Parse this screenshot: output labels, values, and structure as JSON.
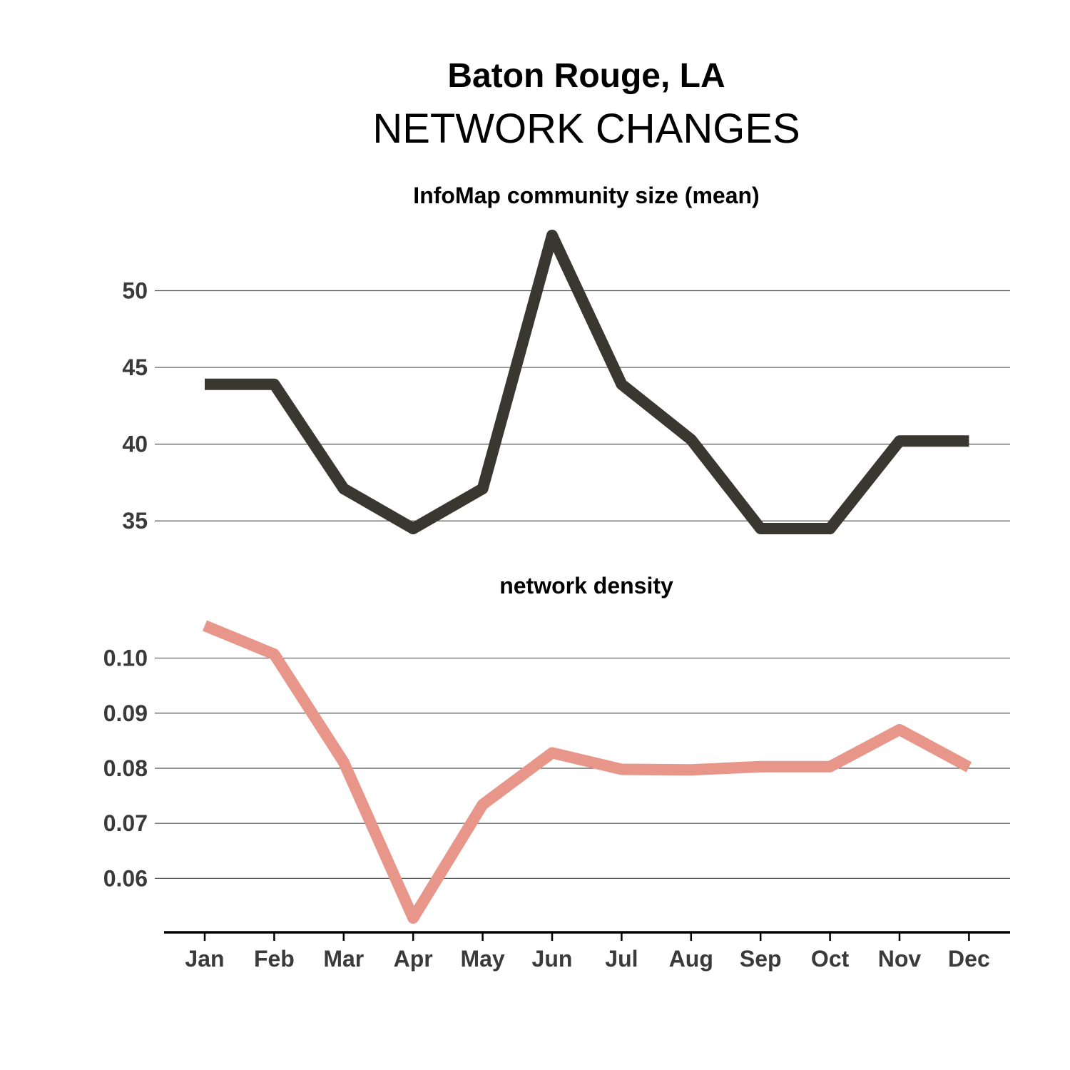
{
  "header": {
    "title": "Baton Rouge, LA",
    "subtitle": "NETWORK CHANGES"
  },
  "colors": {
    "community": "#3a3730",
    "density": "#e8968a"
  },
  "chart_data": [
    {
      "type": "line",
      "title": "InfoMap community size (mean)",
      "categories": [
        "Jan",
        "Feb",
        "Mar",
        "Apr",
        "May",
        "Jun",
        "Jul",
        "Aug",
        "Sep",
        "Oct",
        "Nov",
        "Dec"
      ],
      "series": [
        {
          "name": "InfoMap community size (mean)",
          "values": [
            43.9,
            43.9,
            37.1,
            34.5,
            37.1,
            53.6,
            43.9,
            40.3,
            34.5,
            34.5,
            40.2,
            40.2
          ]
        }
      ],
      "yticks": [
        35,
        40,
        45,
        50
      ],
      "ytick_labels": [
        "35",
        "40",
        "45",
        "50"
      ],
      "ylim": [
        34.5,
        53.6
      ],
      "xlabel": "",
      "ylabel": "",
      "grid": true
    },
    {
      "type": "line",
      "title": "network density",
      "categories": [
        "Jan",
        "Feb",
        "Mar",
        "Apr",
        "May",
        "Jun",
        "Jul",
        "Aug",
        "Sep",
        "Oct",
        "Nov",
        "Dec"
      ],
      "series": [
        {
          "name": "network density",
          "values": [
            0.1059,
            0.1007,
            0.0811,
            0.0528,
            0.0734,
            0.0828,
            0.0798,
            0.0797,
            0.0803,
            0.0803,
            0.087,
            0.0802
          ]
        }
      ],
      "yticks": [
        0.06,
        0.07,
        0.08,
        0.09,
        0.1
      ],
      "ytick_labels": [
        "0.06",
        "0.07",
        "0.08",
        "0.09",
        "0.10"
      ],
      "ylim": [
        0.0528,
        0.1059
      ],
      "xlabel": "",
      "ylabel": "",
      "grid": true
    }
  ]
}
